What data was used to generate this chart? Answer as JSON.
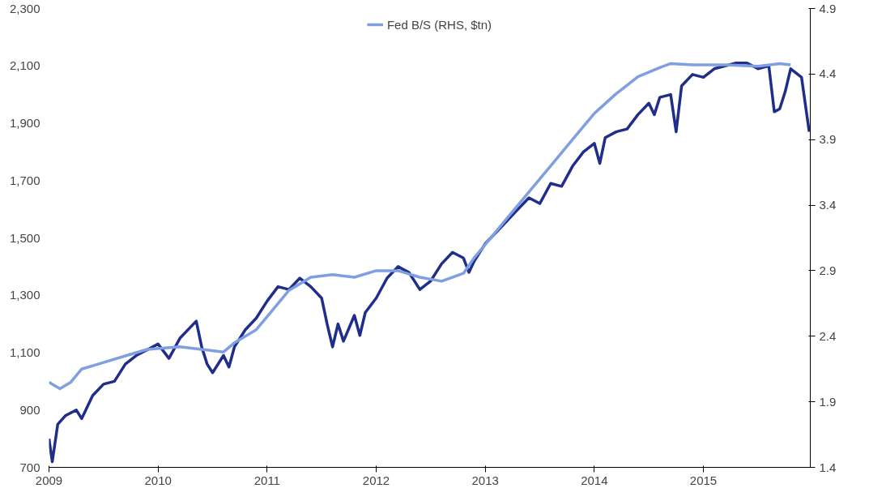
{
  "chart_data": {
    "type": "line",
    "xlim": [
      2009,
      2015.98
    ],
    "xticks": [
      2009,
      2010,
      2011,
      2012,
      2013,
      2014,
      2015
    ],
    "ylim": [
      700,
      2300
    ],
    "yticks": [
      {
        "value": 700,
        "label": "700"
      },
      {
        "value": 900,
        "label": "900"
      },
      {
        "value": 1100,
        "label": "1,100"
      },
      {
        "value": 1300,
        "label": "1,300"
      },
      {
        "value": 1500,
        "label": "1,500"
      },
      {
        "value": 1700,
        "label": "1,700"
      },
      {
        "value": 1900,
        "label": "1,900"
      },
      {
        "value": 2100,
        "label": "2,100"
      },
      {
        "value": 2300,
        "label": "2,300"
      }
    ],
    "y2lim": [
      1.4,
      4.9
    ],
    "y2ticks": [
      1.4,
      1.9,
      2.4,
      2.9,
      3.4,
      3.9,
      4.4,
      4.9
    ],
    "grid": false,
    "legend": "top",
    "marker": "none",
    "line_style": "solid",
    "series": [
      {
        "color": "#1f2e8a",
        "x": [
          2009.0,
          2009.03,
          2009.08,
          2009.15,
          2009.25,
          2009.3,
          2009.4,
          2009.5,
          2009.6,
          2009.7,
          2009.8,
          2009.9,
          2010.0,
          2010.1,
          2010.2,
          2010.3,
          2010.35,
          2010.4,
          2010.45,
          2010.5,
          2010.6,
          2010.65,
          2010.7,
          2010.8,
          2010.9,
          2011.0,
          2011.1,
          2011.2,
          2011.3,
          2011.4,
          2011.5,
          2011.55,
          2011.6,
          2011.65,
          2011.7,
          2011.8,
          2011.85,
          2011.9,
          2012.0,
          2012.1,
          2012.2,
          2012.3,
          2012.4,
          2012.5,
          2012.6,
          2012.7,
          2012.8,
          2012.85,
          2012.9,
          2013.0,
          2013.1,
          2013.2,
          2013.3,
          2013.4,
          2013.5,
          2013.6,
          2013.7,
          2013.8,
          2013.9,
          2014.0,
          2014.05,
          2014.1,
          2014.2,
          2014.3,
          2014.4,
          2014.5,
          2014.55,
          2014.6,
          2014.7,
          2014.75,
          2014.8,
          2014.9,
          2015.0,
          2015.1,
          2015.2,
          2015.3,
          2015.4,
          2015.5,
          2015.6,
          2015.65,
          2015.7,
          2015.75,
          2015.8,
          2015.9,
          2015.97
        ],
        "values": [
          800,
          720,
          850,
          880,
          900,
          870,
          950,
          990,
          1000,
          1060,
          1090,
          1110,
          1130,
          1080,
          1150,
          1190,
          1210,
          1120,
          1060,
          1030,
          1090,
          1050,
          1120,
          1180,
          1220,
          1280,
          1330,
          1320,
          1360,
          1330,
          1290,
          1200,
          1120,
          1200,
          1140,
          1230,
          1160,
          1240,
          1290,
          1360,
          1400,
          1380,
          1320,
          1350,
          1410,
          1450,
          1430,
          1380,
          1420,
          1480,
          1520,
          1560,
          1600,
          1640,
          1620,
          1690,
          1680,
          1750,
          1800,
          1830,
          1760,
          1850,
          1870,
          1880,
          1930,
          1970,
          1930,
          1990,
          2000,
          1870,
          2030,
          2070,
          2060,
          2090,
          2100,
          2110,
          2110,
          2090,
          2100,
          1940,
          1950,
          2010,
          2090,
          2060,
          1870
        ]
      },
      {
        "name": "Fed B/S (RHS, $tn)",
        "color": "#7f9fe0",
        "axis": "y2",
        "x": [
          2009.0,
          2009.1,
          2009.2,
          2009.3,
          2009.5,
          2009.7,
          2009.9,
          2010.2,
          2010.4,
          2010.6,
          2010.7,
          2010.9,
          2011.0,
          2011.2,
          2011.4,
          2011.6,
          2011.8,
          2012.0,
          2012.2,
          2012.4,
          2012.6,
          2012.8,
          2012.9,
          2013.0,
          2013.2,
          2013.4,
          2013.6,
          2013.8,
          2014.0,
          2014.2,
          2014.4,
          2014.6,
          2014.7,
          2014.9,
          2015.2,
          2015.5,
          2015.7,
          2015.8
        ],
        "values": [
          2.05,
          2.0,
          2.05,
          2.15,
          2.2,
          2.25,
          2.3,
          2.32,
          2.3,
          2.28,
          2.35,
          2.45,
          2.55,
          2.75,
          2.85,
          2.87,
          2.85,
          2.9,
          2.9,
          2.85,
          2.82,
          2.88,
          3.0,
          3.1,
          3.3,
          3.5,
          3.7,
          3.9,
          4.1,
          4.25,
          4.38,
          4.45,
          4.48,
          4.47,
          4.47,
          4.46,
          4.48,
          4.47
        ]
      }
    ]
  }
}
